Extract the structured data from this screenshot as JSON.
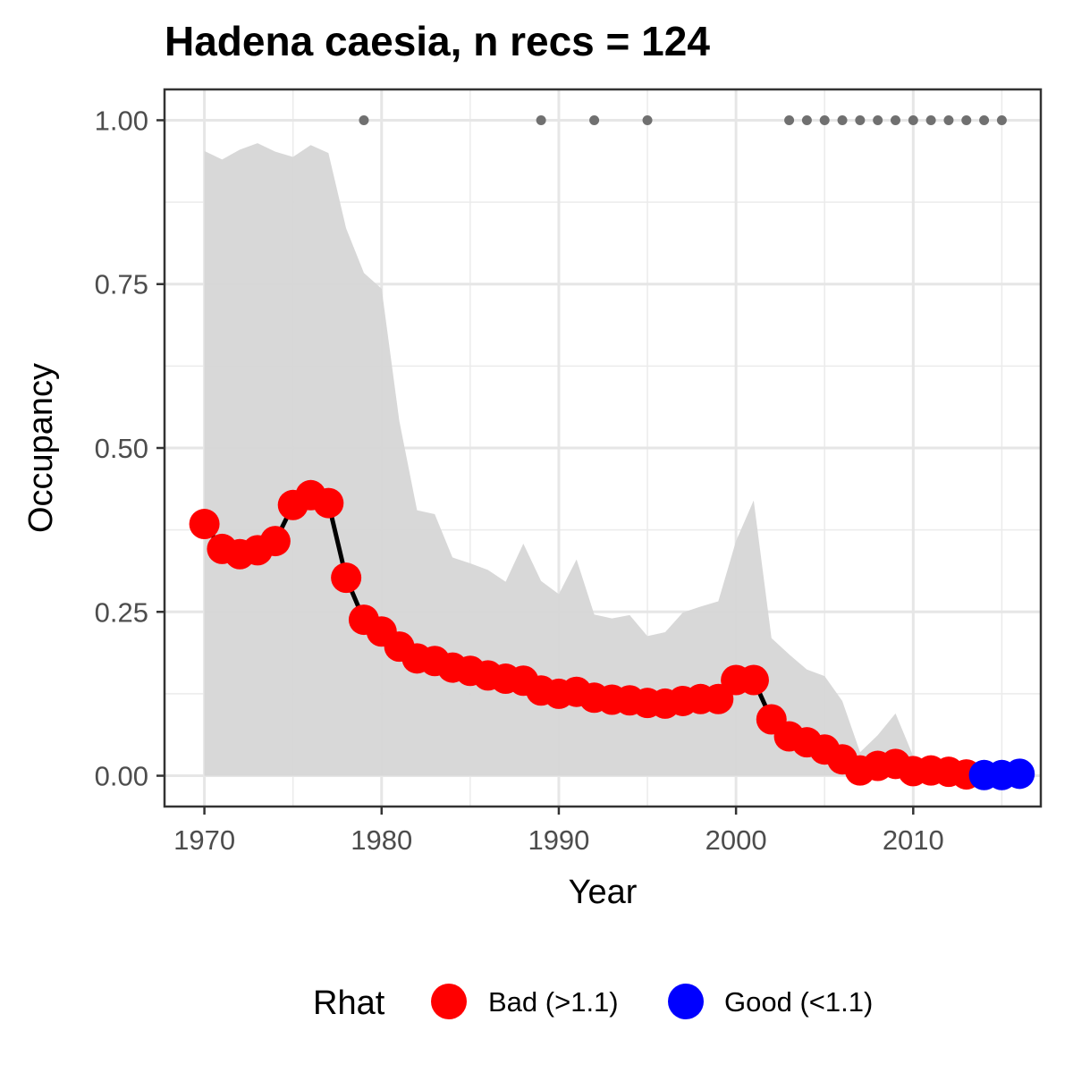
{
  "chart_data": {
    "type": "line",
    "title": "Hadena caesia, n recs = 124",
    "xlabel": "Year",
    "ylabel": "Occupancy",
    "xlim": [
      1967.7,
      1970.0,
      2017.2
    ],
    "ylim": [
      -0.047,
      1.047
    ],
    "x_ticks": [
      1970,
      1980,
      1990,
      2000,
      2010
    ],
    "x_tick_labels": [
      "1970",
      "1980",
      "1990",
      "2000",
      "2010"
    ],
    "y_ticks": [
      0,
      0.25,
      0.5,
      0.75,
      1.0
    ],
    "y_tick_labels": [
      "0.00",
      "0.25",
      "0.50",
      "0.75",
      "1.00"
    ],
    "grid": true,
    "legend": {
      "title": "Rhat",
      "placement": "bottom",
      "entries": [
        {
          "label": "Bad (>1.1)",
          "color": "#ff0000"
        },
        {
          "label": "Good (<1.1)",
          "color": "#0000ff"
        }
      ]
    },
    "colors": {
      "bad": "#ff0000",
      "good": "#0000ff",
      "ribbon": "#d6d6d6",
      "line": "#000000",
      "records": "#707070"
    },
    "series": [
      {
        "x": [
          1970,
          1971,
          1972,
          1973,
          1974,
          1975,
          1976,
          1977,
          1978,
          1979,
          1980,
          1981,
          1982,
          1983,
          1984,
          1985,
          1986,
          1987,
          1988,
          1989,
          1990,
          1991,
          1992,
          1993,
          1994,
          1995,
          1996,
          1997,
          1998,
          1999,
          2000,
          2001,
          2002,
          2003,
          2004,
          2005,
          2006,
          2007,
          2008,
          2009,
          2010,
          2011,
          2012,
          2013,
          2014,
          2015,
          2016
        ],
        "values": [
          0.384,
          0.346,
          0.338,
          0.344,
          0.358,
          0.413,
          0.428,
          0.416,
          0.302,
          0.238,
          0.22,
          0.197,
          0.179,
          0.175,
          0.165,
          0.16,
          0.153,
          0.148,
          0.145,
          0.13,
          0.125,
          0.128,
          0.119,
          0.116,
          0.115,
          0.111,
          0.11,
          0.114,
          0.117,
          0.117,
          0.146,
          0.146,
          0.086,
          0.06,
          0.051,
          0.04,
          0.025,
          0.008,
          0.015,
          0.018,
          0.007,
          0.008,
          0.006,
          0.002,
          0.001,
          0.001,
          0.003
        ],
        "rhat": [
          "Bad (>1.1)",
          "Bad (>1.1)",
          "Bad (>1.1)",
          "Bad (>1.1)",
          "Bad (>1.1)",
          "Bad (>1.1)",
          "Bad (>1.1)",
          "Bad (>1.1)",
          "Bad (>1.1)",
          "Bad (>1.1)",
          "Bad (>1.1)",
          "Bad (>1.1)",
          "Bad (>1.1)",
          "Bad (>1.1)",
          "Bad (>1.1)",
          "Bad (>1.1)",
          "Bad (>1.1)",
          "Bad (>1.1)",
          "Bad (>1.1)",
          "Bad (>1.1)",
          "Bad (>1.1)",
          "Bad (>1.1)",
          "Bad (>1.1)",
          "Bad (>1.1)",
          "Bad (>1.1)",
          "Bad (>1.1)",
          "Bad (>1.1)",
          "Bad (>1.1)",
          "Bad (>1.1)",
          "Bad (>1.1)",
          "Bad (>1.1)",
          "Bad (>1.1)",
          "Bad (>1.1)",
          "Bad (>1.1)",
          "Bad (>1.1)",
          "Bad (>1.1)",
          "Bad (>1.1)",
          "Bad (>1.1)",
          "Bad (>1.1)",
          "Bad (>1.1)",
          "Bad (>1.1)",
          "Bad (>1.1)",
          "Bad (>1.1)",
          "Bad (>1.1)",
          "Good (<1.1)",
          "Good (<1.1)",
          "Good (<1.1)"
        ],
        "lower": [
          0.0,
          0.0,
          0.0,
          0.0,
          0.0,
          0.0,
          0.0,
          0.0,
          0.0,
          0.0,
          0.0,
          0.0,
          0.0,
          0.0,
          0.0,
          0.0,
          0.0,
          0.0,
          0.0,
          0.0,
          0.0,
          0.0,
          0.0,
          0.0,
          0.0,
          0.0,
          0.0,
          0.0,
          0.0,
          0.0,
          0.0,
          0.0,
          0.0,
          0.0,
          0.0,
          0.0,
          0.0,
          0.0,
          0.0,
          0.0,
          0.0,
          0.0,
          0.0,
          0.0,
          0.0,
          0.0,
          0.0
        ],
        "upper": [
          0.953,
          0.94,
          0.955,
          0.965,
          0.952,
          0.944,
          0.962,
          0.95,
          0.835,
          0.767,
          0.743,
          0.541,
          0.405,
          0.399,
          0.333,
          0.324,
          0.314,
          0.296,
          0.354,
          0.297,
          0.277,
          0.33,
          0.246,
          0.24,
          0.245,
          0.213,
          0.219,
          0.249,
          0.258,
          0.266,
          0.358,
          0.42,
          0.21,
          0.185,
          0.162,
          0.152,
          0.114,
          0.036,
          0.062,
          0.095,
          0.03,
          0.018,
          0.015,
          0.012,
          0.01,
          0.009,
          0.009
        ]
      }
    ],
    "records": {
      "x": [
        1979,
        1989,
        1992,
        1995,
        2003,
        2004,
        2005,
        2006,
        2007,
        2008,
        2009,
        2010,
        2011,
        2012,
        2013,
        2014,
        2015
      ],
      "y": [
        1.0,
        1.0,
        1.0,
        1.0,
        1.0,
        1.0,
        1.0,
        1.0,
        1.0,
        1.0,
        1.0,
        1.0,
        1.0,
        1.0,
        1.0,
        1.0,
        1.0
      ]
    }
  }
}
